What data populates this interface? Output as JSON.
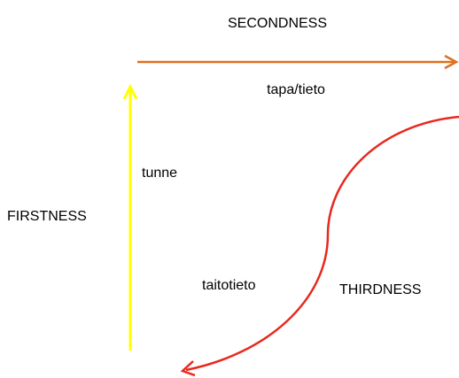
{
  "secondness": {
    "title": "SECONDNESS",
    "label": "tapa/tieto"
  },
  "firstness": {
    "title": "FIRSTNESS",
    "label": "tunne"
  },
  "thirdness": {
    "title": "THIRDNESS",
    "label": "taitotieto"
  }
}
